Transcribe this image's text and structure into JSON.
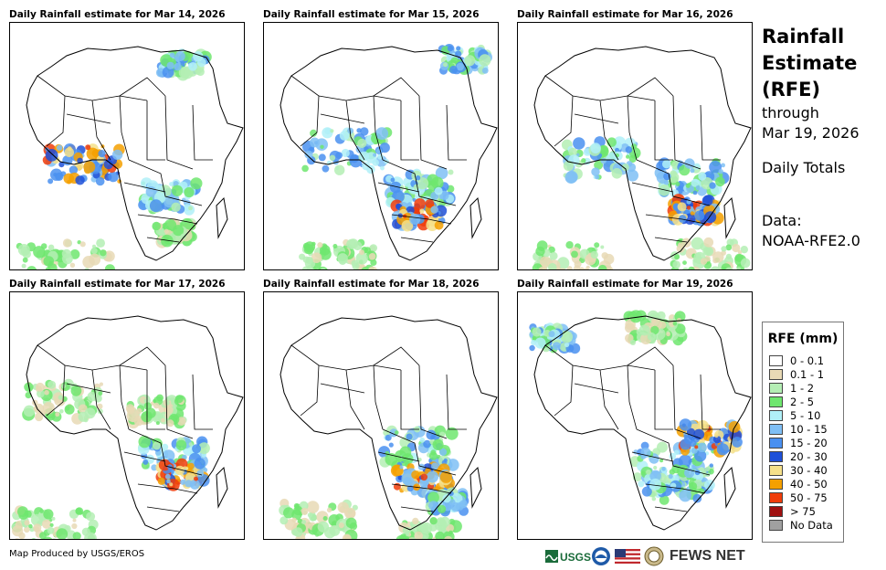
{
  "panels": [
    {
      "title": "Daily Rainfall estimate for Mar 14, 2026"
    },
    {
      "title": "Daily Rainfall estimate for Mar 15, 2026"
    },
    {
      "title": "Daily Rainfall estimate for Mar 16, 2026"
    },
    {
      "title": "Daily Rainfall estimate for Mar 17, 2026"
    },
    {
      "title": "Daily Rainfall estimate for Mar 18, 2026"
    },
    {
      "title": "Daily Rainfall estimate for Mar 19, 2026"
    }
  ],
  "title_block": {
    "line1": "Rainfall",
    "line2": "Estimate",
    "line3": "(RFE)",
    "line4": "through",
    "line5": "Mar 19, 2026",
    "line6": "Daily Totals",
    "line7": "Data:",
    "line8": "NOAA-RFE2.0"
  },
  "legend": {
    "title": "RFE (mm)",
    "items": [
      {
        "label": "0 - 0.1",
        "color": "#ffffff"
      },
      {
        "label": "0.1 - 1",
        "color": "#e8d9b5"
      },
      {
        "label": "1 - 2",
        "color": "#b4eeb4"
      },
      {
        "label": "2 - 5",
        "color": "#6ee66e"
      },
      {
        "label": "5 - 10",
        "color": "#b0f0f8"
      },
      {
        "label": "10 - 15",
        "color": "#7fbff5"
      },
      {
        "label": "15 - 20",
        "color": "#4a90f0"
      },
      {
        "label": "20 - 30",
        "color": "#1e50d8"
      },
      {
        "label": "30 - 40",
        "color": "#f5e08a"
      },
      {
        "label": "40 - 50",
        "color": "#f5a000"
      },
      {
        "label": "50 - 75",
        "color": "#f03c0a"
      },
      {
        "label": "> 75",
        "color": "#a01010"
      },
      {
        "label": "No Data",
        "color": "#a0a0a0"
      }
    ]
  },
  "credit": "Map Produced by USGS/EROS",
  "footer": {
    "usgs": "USGS",
    "fews": "FEWS NET"
  }
}
